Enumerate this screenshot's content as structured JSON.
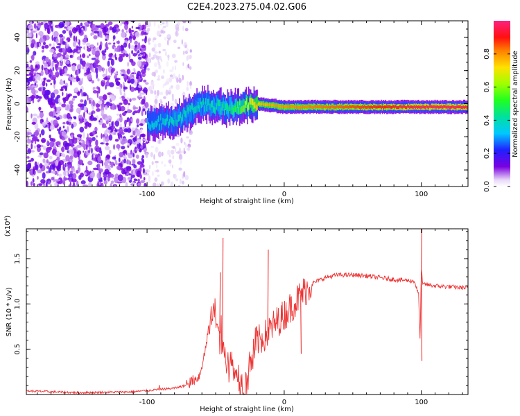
{
  "title": "C2E4.2023.275.04.02.G06",
  "chart_data": [
    {
      "type": "heatmap",
      "xlabel": "Height of straight line (km)",
      "ylabel": "Frequency (Hz)",
      "xlim": [
        -188,
        134
      ],
      "ylim": [
        -50,
        50
      ],
      "xticks": [
        -100,
        0,
        100
      ],
      "xtick_labels": [
        "-100",
        "0",
        "100"
      ],
      "yticks": [
        -40,
        -20,
        0,
        20,
        40
      ],
      "ytick_labels": [
        "-40",
        "-20",
        "0",
        "20",
        "40"
      ],
      "colorbar": {
        "label": "Normalized spectral amplitude",
        "range": [
          0,
          1
        ],
        "ticks": [
          0.0,
          0.2,
          0.4,
          0.6,
          0.8
        ],
        "tick_labels": [
          "0.0",
          "0.2",
          "0.4",
          "0.6",
          "0.8"
        ]
      },
      "ridge": {
        "description_points": [
          {
            "x": -100,
            "freq": -12,
            "amp": 0.35
          },
          {
            "x": -80,
            "freq": -10,
            "amp": 0.4
          },
          {
            "x": -60,
            "freq": 0,
            "amp": 0.4
          },
          {
            "x": -40,
            "freq": -3,
            "amp": 0.45
          },
          {
            "x": -20,
            "freq": 0,
            "amp": 0.75
          },
          {
            "x": 0,
            "freq": -2,
            "amp": 0.8
          },
          {
            "x": 40,
            "freq": -2,
            "amp": 0.85
          },
          {
            "x": 100,
            "freq": -2,
            "amp": 0.95
          },
          {
            "x": 134,
            "freq": -2,
            "amp": 0.95
          }
        ]
      }
    },
    {
      "type": "line",
      "xlabel": "Height of straight line (km)",
      "ylabel": "SNR (10 * v/v)",
      "multiplier": "(x10⁴)",
      "xlim": [
        -188,
        134
      ],
      "ylim": [
        0,
        1.83
      ],
      "xticks": [
        -100,
        0,
        100
      ],
      "xtick_labels": [
        "-100",
        "0",
        "100"
      ],
      "yticks": [
        0.5,
        1.0,
        1.5
      ],
      "ytick_labels": [
        "0.5",
        "1.0",
        "1.5"
      ],
      "series": [
        {
          "color": "#ee3333",
          "x": [
            -188,
            -150,
            -110,
            -95,
            -80,
            -72,
            -62,
            -58,
            -55,
            -52,
            -50,
            -48,
            -46,
            -44,
            -42,
            -40,
            -37,
            -34,
            -30,
            -28,
            -26,
            -24,
            -22,
            -20,
            -16,
            -12,
            -8,
            -4,
            0,
            4,
            8,
            12,
            16,
            20,
            25,
            30,
            35,
            40,
            45,
            50,
            60,
            70,
            80,
            90,
            95,
            98,
            99,
            100,
            101,
            102,
            105,
            110,
            120,
            130,
            134
          ],
          "y": [
            0.04,
            0.02,
            0.03,
            0.05,
            0.07,
            0.1,
            0.2,
            0.45,
            0.75,
            0.95,
            0.8,
            0.75,
            0.6,
            0.45,
            0.4,
            0.35,
            0.3,
            0.2,
            0.12,
            0.12,
            0.3,
            0.42,
            0.5,
            0.58,
            0.62,
            0.68,
            0.76,
            0.82,
            0.88,
            0.95,
            1.02,
            1.1,
            1.16,
            1.22,
            1.26,
            1.29,
            1.31,
            1.32,
            1.32,
            1.32,
            1.31,
            1.29,
            1.27,
            1.26,
            1.25,
            1.1,
            0.6,
            1.4,
            1.2,
            1.22,
            1.21,
            1.2,
            1.19,
            1.18,
            1.18
          ]
        }
      ],
      "spikes": [
        {
          "x": -45,
          "y": 1.73
        },
        {
          "x": -47,
          "y": 1.35
        },
        {
          "x": -12,
          "y": 1.6
        },
        {
          "x": 100,
          "y": 1.83
        },
        {
          "x": 100,
          "y": 0.37
        },
        {
          "x": 12,
          "y": 0.45
        }
      ]
    }
  ]
}
